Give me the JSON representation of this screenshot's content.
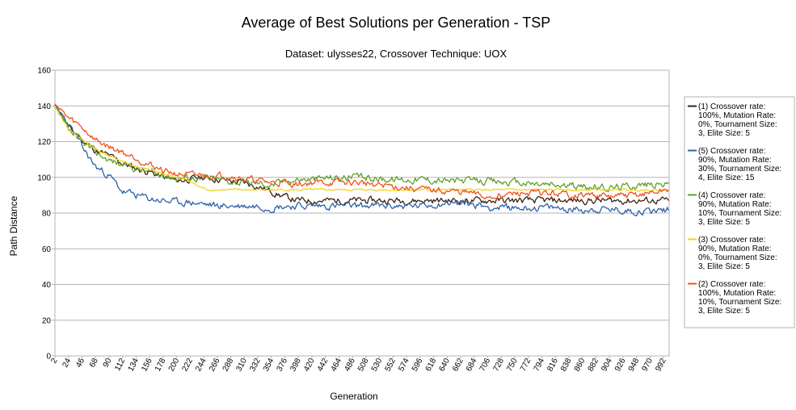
{
  "chart_data": {
    "type": "line",
    "title": "Average of Best Solutions per Generation - TSP",
    "subtitle": "Dataset: ulysses22, Crossover Technique: UOX",
    "xlabel": "Generation",
    "ylabel": "Path Distance",
    "ylim": [
      0,
      160
    ],
    "y_ticks": [
      "0",
      "20",
      "40",
      "60",
      "80",
      "100",
      "120",
      "140",
      "160"
    ],
    "xlim": [
      2,
      1001
    ],
    "x_ticks": [
      "2",
      "24",
      "46",
      "68",
      "90",
      "112",
      "134",
      "156",
      "178",
      "200",
      "222",
      "244",
      "266",
      "288",
      "310",
      "332",
      "354",
      "376",
      "398",
      "420",
      "442",
      "464",
      "486",
      "508",
      "530",
      "552",
      "574",
      "596",
      "618",
      "640",
      "662",
      "684",
      "706",
      "728",
      "750",
      "772",
      "794",
      "816",
      "838",
      "860",
      "882",
      "904",
      "926",
      "948",
      "970",
      "992"
    ],
    "grid": "horizontal",
    "legend_position": "right",
    "series": [
      {
        "name": "(1) Crossover rate: 100%, Mutation Rate: 0%, Tournament Size: 3, Elite Size: 5",
        "color": "#3b2314",
        "noise": 1.2,
        "seed": 11,
        "points": [
          [
            2,
            141
          ],
          [
            24,
            128
          ],
          [
            46,
            121
          ],
          [
            68,
            115
          ],
          [
            90,
            112
          ],
          [
            112,
            108
          ],
          [
            134,
            105
          ],
          [
            156,
            103
          ],
          [
            178,
            100
          ],
          [
            200,
            98
          ],
          [
            222,
            99
          ],
          [
            244,
            100
          ],
          [
            266,
            99
          ],
          [
            288,
            98
          ],
          [
            310,
            97
          ],
          [
            332,
            95
          ],
          [
            354,
            92
          ],
          [
            376,
            89
          ],
          [
            398,
            87
          ],
          [
            420,
            87
          ],
          [
            500,
            87
          ],
          [
            600,
            87
          ],
          [
            700,
            87
          ],
          [
            800,
            87
          ],
          [
            900,
            87
          ],
          [
            1001,
            87
          ]
        ]
      },
      {
        "name": "(5) Crossover rate: 90%, Mutation Rate: 30%, Tournament Size: 4, Elite Size: 15",
        "color": "#2e63a8",
        "noise": 1.3,
        "seed": 23,
        "points": [
          [
            2,
            140
          ],
          [
            24,
            130
          ],
          [
            46,
            117
          ],
          [
            68,
            106
          ],
          [
            90,
            101
          ],
          [
            112,
            92
          ],
          [
            134,
            90
          ],
          [
            156,
            88
          ],
          [
            178,
            87
          ],
          [
            200,
            86
          ],
          [
            222,
            86
          ],
          [
            244,
            85
          ],
          [
            266,
            84
          ],
          [
            288,
            84
          ],
          [
            310,
            84
          ],
          [
            332,
            84
          ],
          [
            354,
            83
          ],
          [
            376,
            84
          ],
          [
            398,
            84
          ],
          [
            420,
            84
          ],
          [
            450,
            84
          ],
          [
            500,
            84
          ],
          [
            560,
            84
          ],
          [
            600,
            84
          ],
          [
            640,
            86
          ],
          [
            680,
            85
          ],
          [
            720,
            83
          ],
          [
            760,
            83
          ],
          [
            800,
            83
          ],
          [
            850,
            82
          ],
          [
            900,
            82
          ],
          [
            950,
            81
          ],
          [
            1001,
            82
          ]
        ]
      },
      {
        "name": "(4) Crossover rate: 90%, Mutation Rate: 10%, Tournament Size: 3, Elite Size: 5",
        "color": "#5fa02a",
        "noise": 1.3,
        "seed": 37,
        "points": [
          [
            2,
            140
          ],
          [
            24,
            126
          ],
          [
            46,
            120
          ],
          [
            68,
            114
          ],
          [
            90,
            110
          ],
          [
            112,
            107
          ],
          [
            134,
            105
          ],
          [
            156,
            103
          ],
          [
            178,
            101
          ],
          [
            200,
            100
          ],
          [
            222,
            100
          ],
          [
            244,
            100
          ],
          [
            266,
            99
          ],
          [
            288,
            98
          ],
          [
            310,
            97
          ],
          [
            332,
            97
          ],
          [
            354,
            96
          ],
          [
            376,
            98
          ],
          [
            398,
            99
          ],
          [
            420,
            99
          ],
          [
            450,
            100
          ],
          [
            500,
            100
          ],
          [
            550,
            99
          ],
          [
            600,
            99
          ],
          [
            650,
            98
          ],
          [
            700,
            98
          ],
          [
            750,
            97
          ],
          [
            800,
            96
          ],
          [
            850,
            95
          ],
          [
            900,
            94
          ],
          [
            950,
            96
          ],
          [
            1001,
            96
          ]
        ]
      },
      {
        "name": "(3) Crossover rate: 90%, Mutation Rate: 0%, Tournament Size: 3, Elite Size: 5",
        "color": "#f2d21b",
        "noise": 0.35,
        "seed": 41,
        "points": [
          [
            2,
            140
          ],
          [
            24,
            127
          ],
          [
            46,
            121
          ],
          [
            68,
            116
          ],
          [
            90,
            112
          ],
          [
            112,
            109
          ],
          [
            134,
            106
          ],
          [
            156,
            104
          ],
          [
            178,
            102
          ],
          [
            200,
            100
          ],
          [
            222,
            98
          ],
          [
            235,
            95
          ],
          [
            250,
            93
          ],
          [
            300,
            93
          ],
          [
            400,
            93
          ],
          [
            500,
            93
          ],
          [
            600,
            93
          ],
          [
            700,
            93
          ],
          [
            800,
            93
          ],
          [
            900,
            93
          ],
          [
            1001,
            93
          ]
        ]
      },
      {
        "name": "(2) Crossover rate: 100%, Mutation Rate: 10%, Tournament Size: 3, Elite Size: 5",
        "color": "#f0531a",
        "noise": 1.2,
        "seed": 59,
        "points": [
          [
            2,
            141
          ],
          [
            24,
            133
          ],
          [
            46,
            128
          ],
          [
            68,
            121
          ],
          [
            90,
            117
          ],
          [
            112,
            114
          ],
          [
            134,
            111
          ],
          [
            156,
            107
          ],
          [
            178,
            104
          ],
          [
            200,
            102
          ],
          [
            222,
            101
          ],
          [
            244,
            101
          ],
          [
            266,
            101
          ],
          [
            288,
            101
          ],
          [
            310,
            99
          ],
          [
            332,
            98
          ],
          [
            354,
            97
          ],
          [
            376,
            97
          ],
          [
            398,
            96
          ],
          [
            420,
            97
          ],
          [
            450,
            97
          ],
          [
            500,
            97
          ],
          [
            550,
            95
          ],
          [
            600,
            93
          ],
          [
            650,
            92
          ],
          [
            680,
            91
          ],
          [
            700,
            89
          ],
          [
            730,
            90
          ],
          [
            760,
            91
          ],
          [
            800,
            91
          ],
          [
            850,
            90
          ],
          [
            880,
            90
          ],
          [
            900,
            89
          ],
          [
            950,
            90
          ],
          [
            1001,
            93
          ]
        ]
      }
    ]
  }
}
